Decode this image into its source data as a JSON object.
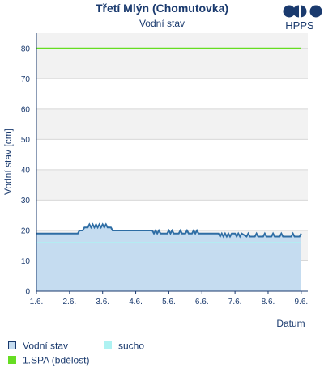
{
  "chart_data": {
    "type": "line",
    "title": "Třetí Mlýn (Chomutovka)",
    "subtitle": "Vodní stav",
    "ylabel": "Vodní stav [cm]",
    "xlabel": "Datum",
    "ylim": [
      0,
      85
    ],
    "yticks": [
      0,
      10,
      20,
      30,
      40,
      50,
      60,
      70,
      80
    ],
    "xlim": [
      0,
      8.2
    ],
    "x_ticks": [
      {
        "x": 0,
        "label": "1.6."
      },
      {
        "x": 1,
        "label": "2.6."
      },
      {
        "x": 2,
        "label": "3.6."
      },
      {
        "x": 3,
        "label": "4.6."
      },
      {
        "x": 4,
        "label": "5.6."
      },
      {
        "x": 5,
        "label": "6.6."
      },
      {
        "x": 6,
        "label": "7.6."
      },
      {
        "x": 7,
        "label": "8.6."
      },
      {
        "x": 8,
        "label": "9.6."
      }
    ],
    "series": [
      {
        "name": "Vodní stav",
        "color": "#2e6da4",
        "fill": "#c5dcf0",
        "points": [
          [
            0,
            19
          ],
          [
            1.25,
            19
          ],
          [
            1.3,
            20
          ],
          [
            1.4,
            20
          ],
          [
            1.45,
            21
          ],
          [
            1.55,
            21
          ],
          [
            1.6,
            22
          ],
          [
            1.65,
            21
          ],
          [
            1.7,
            22
          ],
          [
            1.75,
            21
          ],
          [
            1.8,
            22
          ],
          [
            1.85,
            21
          ],
          [
            1.9,
            22
          ],
          [
            1.95,
            21
          ],
          [
            2.0,
            22
          ],
          [
            2.05,
            21
          ],
          [
            2.1,
            22
          ],
          [
            2.15,
            21
          ],
          [
            2.25,
            21
          ],
          [
            2.3,
            20
          ],
          [
            3.5,
            20
          ],
          [
            3.55,
            19
          ],
          [
            3.6,
            20
          ],
          [
            3.65,
            19
          ],
          [
            3.7,
            20
          ],
          [
            3.75,
            19
          ],
          [
            3.95,
            19
          ],
          [
            4.0,
            20
          ],
          [
            4.05,
            19
          ],
          [
            4.1,
            20
          ],
          [
            4.15,
            19
          ],
          [
            4.3,
            19
          ],
          [
            4.35,
            20
          ],
          [
            4.4,
            19
          ],
          [
            4.5,
            19
          ],
          [
            4.55,
            20
          ],
          [
            4.6,
            19
          ],
          [
            4.7,
            19
          ],
          [
            4.75,
            20
          ],
          [
            4.8,
            19
          ],
          [
            4.85,
            20
          ],
          [
            4.9,
            19
          ],
          [
            5.5,
            19
          ],
          [
            5.55,
            18
          ],
          [
            5.6,
            19
          ],
          [
            5.65,
            18
          ],
          [
            5.7,
            19
          ],
          [
            5.75,
            18
          ],
          [
            5.8,
            19
          ],
          [
            5.85,
            18
          ],
          [
            5.9,
            19
          ],
          [
            6.0,
            19
          ],
          [
            6.05,
            18
          ],
          [
            6.1,
            19
          ],
          [
            6.15,
            18
          ],
          [
            6.2,
            19
          ],
          [
            6.35,
            18
          ],
          [
            6.4,
            19
          ],
          [
            6.45,
            18
          ],
          [
            6.6,
            18
          ],
          [
            6.65,
            19
          ],
          [
            6.7,
            18
          ],
          [
            6.85,
            18
          ],
          [
            6.9,
            19
          ],
          [
            6.95,
            18
          ],
          [
            7.1,
            18
          ],
          [
            7.15,
            19
          ],
          [
            7.2,
            18
          ],
          [
            7.35,
            18
          ],
          [
            7.4,
            19
          ],
          [
            7.45,
            18
          ],
          [
            7.7,
            18
          ],
          [
            7.75,
            19
          ],
          [
            7.8,
            18
          ],
          [
            7.95,
            18
          ],
          [
            8.0,
            19
          ]
        ]
      },
      {
        "name": "sucho",
        "color": "#aef2f2",
        "value": 16
      },
      {
        "name": "1.SPA (bdělost)",
        "color": "#66dd22",
        "value": 80
      }
    ],
    "legend": [
      {
        "label": "Vodní stav",
        "kind": "box",
        "color": "#c5dcf0",
        "stroke": "#1a3a6e"
      },
      {
        "label": "sucho",
        "kind": "fill",
        "color": "#aef2f2"
      },
      {
        "label": "1.SPA (bdělost)",
        "kind": "fill",
        "color": "#66dd22"
      }
    ]
  },
  "logo": {
    "text": "HPPS"
  }
}
